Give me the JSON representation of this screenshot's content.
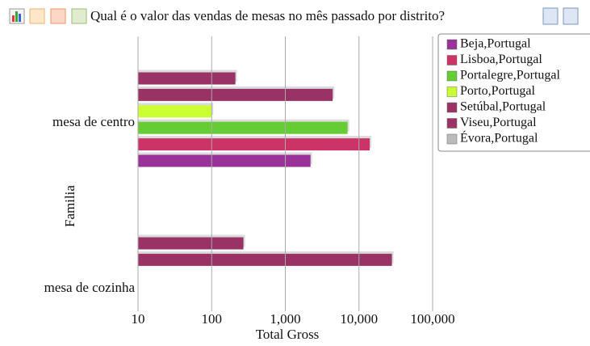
{
  "chart_data": {
    "type": "bar",
    "orientation": "horizontal",
    "title": "Qual é o valor das vendas de mesas no mês passado por distrito?",
    "xlabel": "Total Gross",
    "ylabel": "Familia",
    "categories": [
      "mesa de centro",
      "mesa de cozinha"
    ],
    "series": [
      {
        "name": "Beja,Portugal",
        "color": "#993399",
        "values": [
          2200,
          null
        ]
      },
      {
        "name": "Lisboa,Portugal",
        "color": "#cc3366",
        "values": [
          14000,
          null
        ]
      },
      {
        "name": "Portalegre,Portugal",
        "color": "#66cc33",
        "values": [
          7000,
          null
        ]
      },
      {
        "name": "Porto,Portugal",
        "color": "#ccff33",
        "values": [
          100,
          null
        ]
      },
      {
        "name": "Setúbal,Portugal",
        "color": "#993366",
        "values": [
          4400,
          28000
        ]
      },
      {
        "name": "Viseu,Portugal",
        "color": "#993366",
        "values": [
          210,
          270
        ]
      },
      {
        "name": "Évora,Portugal",
        "color": "#bbbbbb",
        "values": [
          null,
          null
        ]
      }
    ],
    "xscale": "log",
    "xlim": [
      10,
      100000
    ],
    "xticks": [
      10,
      100,
      {
        "value": 1000,
        "label": "1,000"
      },
      {
        "value": 10000,
        "label": "10,000"
      },
      {
        "value": 100000,
        "label": "100,000"
      }
    ],
    "grid": true,
    "legend": "top-right"
  }
}
